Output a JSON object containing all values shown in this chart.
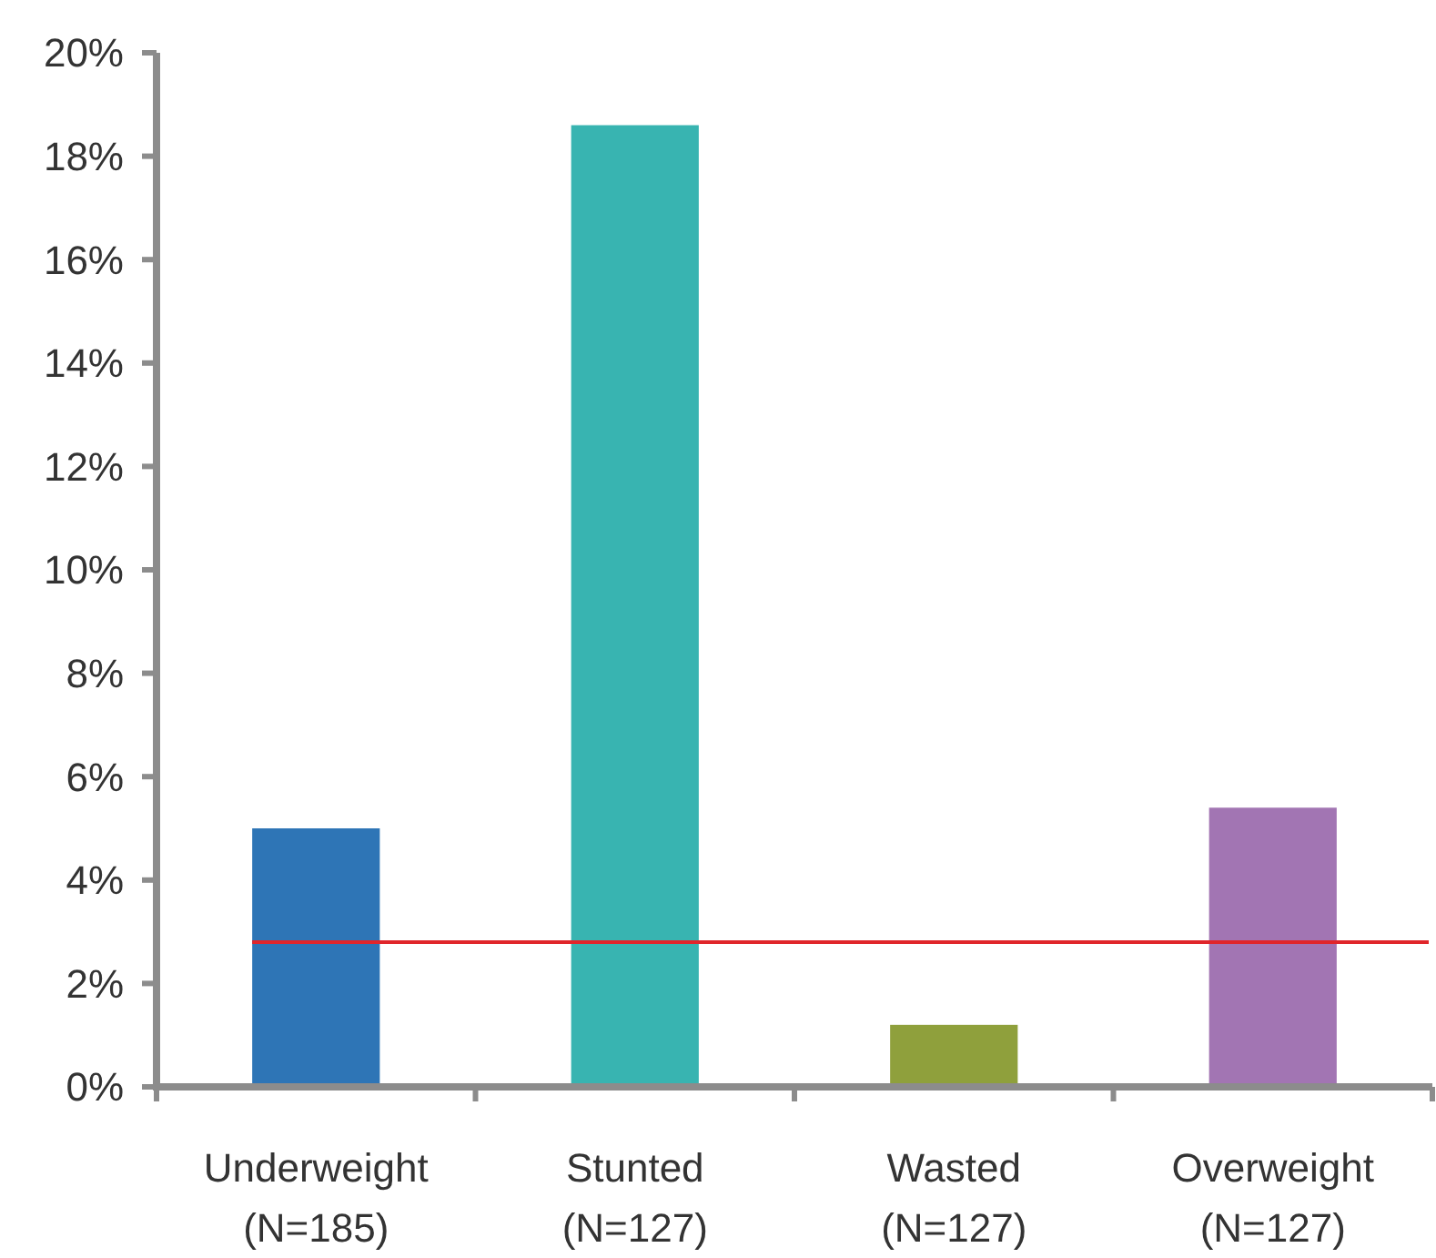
{
  "chart_data": {
    "type": "bar",
    "categories": [
      "Underweight\n(N=185)",
      "Stunted\n(N=127)",
      "Wasted\n(N=127)",
      "Overweight\n(N=127)"
    ],
    "values": [
      5.0,
      18.6,
      1.2,
      5.4
    ],
    "colors": [
      "#2e75b6",
      "#38b4b1",
      "#8fa03c",
      "#a275b3"
    ],
    "ylim": [
      0,
      20
    ],
    "yticks": [
      {
        "value": 0,
        "label": "0%"
      },
      {
        "value": 2,
        "label": "2%"
      },
      {
        "value": 4,
        "label": "4%"
      },
      {
        "value": 6,
        "label": "6%"
      },
      {
        "value": 8,
        "label": "8%"
      },
      {
        "value": 10,
        "label": "10%"
      },
      {
        "value": 12,
        "label": "12%"
      },
      {
        "value": 14,
        "label": "14%"
      },
      {
        "value": 16,
        "label": "16%"
      },
      {
        "value": 18,
        "label": "18%"
      },
      {
        "value": 20,
        "label": "20%"
      }
    ],
    "ref_lines": [
      {
        "axis": "y",
        "value": 2.8,
        "color": "#e0262b"
      }
    ]
  }
}
